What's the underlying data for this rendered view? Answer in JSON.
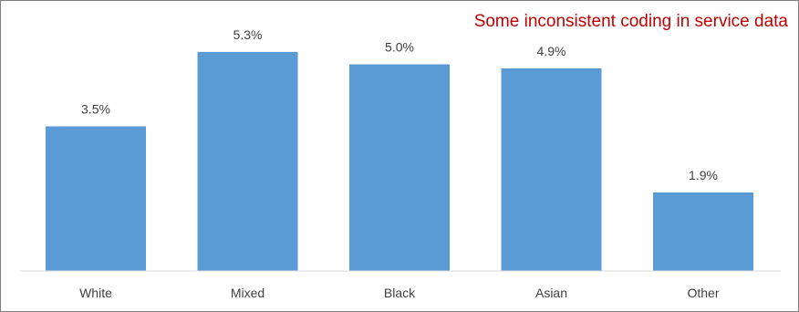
{
  "annotation": "Some inconsistent coding in service data",
  "colors": {
    "bar": "#5b9bd5",
    "annotation": "#c00000",
    "axis": "#d9d9d9",
    "text": "#404040"
  },
  "chart_data": {
    "type": "bar",
    "title": "",
    "xlabel": "",
    "ylabel": "",
    "categories": [
      "White",
      "Mixed",
      "Black",
      "Asian",
      "Other"
    ],
    "values": [
      3.5,
      5.3,
      5.0,
      4.9,
      1.9
    ],
    "value_labels": [
      "3.5%",
      "5.3%",
      "5.0%",
      "4.9%",
      "1.9%"
    ],
    "ylim": [
      0,
      6.0
    ],
    "grid": false,
    "legend": "none"
  }
}
